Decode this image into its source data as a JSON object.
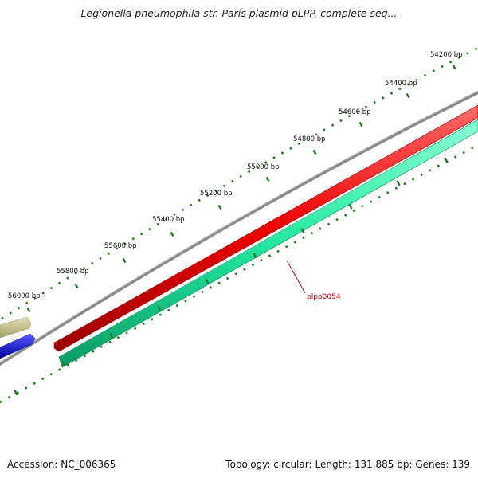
{
  "title": "Legionella pneumophila str. Paris plasmid pLPP, complete seq...",
  "footer": {
    "accession": "Accession: NC_006365",
    "summary": "Topology: circular; Length: 131,885 bp; Genes: 139"
  },
  "ruler": {
    "labels": [
      "54200 bp",
      "54400 bp",
      "54600 bp",
      "54800 bp",
      "55000 bp",
      "55200 bp",
      "55400 bp",
      "55600 bp",
      "55800 bp",
      "56000 bp"
    ]
  },
  "features": {
    "highlighted_gene": "plpp0054"
  },
  "colors": {
    "backbone": "#8a8a8a",
    "red_feature": "#ee0000",
    "green_feature": "#22e8a0",
    "olive_feature": "#c8c48c",
    "blue_feature": "#1010ee",
    "tick": "#1a7a1a",
    "gene_label": "#cc0000"
  }
}
